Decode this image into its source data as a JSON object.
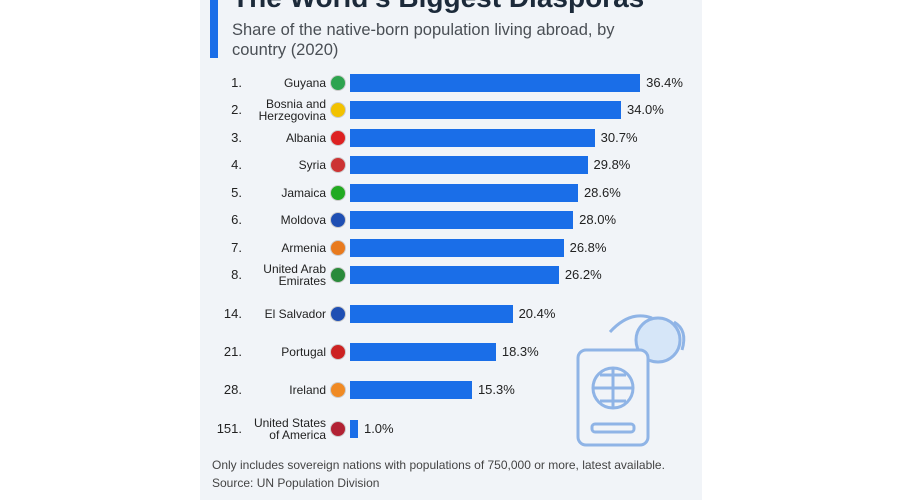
{
  "chart_data": {
    "type": "bar",
    "orientation": "horizontal",
    "title": "The World's Biggest Diasporas",
    "subtitle": "Share of the native-born population living abroad, by country (2020)",
    "ranks": [
      "1.",
      "2.",
      "3.",
      "4.",
      "5.",
      "6.",
      "7.",
      "8.",
      "14.",
      "21.",
      "28.",
      "151."
    ],
    "categories": [
      "Guyana",
      "Bosnia and Herzegovina",
      "Albania",
      "Syria",
      "Jamaica",
      "Moldova",
      "Armenia",
      "United Arab Emirates",
      "El Salvador",
      "Portugal",
      "Ireland",
      "United States of America"
    ],
    "values": [
      36.4,
      34.0,
      30.7,
      29.8,
      28.6,
      28.0,
      26.8,
      26.2,
      20.4,
      18.3,
      15.3,
      1.0
    ],
    "value_labels": [
      "36.4%",
      "34.0%",
      "30.7%",
      "29.8%",
      "28.6%",
      "28.0%",
      "26.8%",
      "26.2%",
      "20.4%",
      "18.3%",
      "15.3%",
      "1.0%"
    ],
    "color": "#1a6ee8",
    "note": "Only includes sovereign nations with populations of 750,000 or more, latest available.",
    "source": "Source: UN Population Division"
  }
}
